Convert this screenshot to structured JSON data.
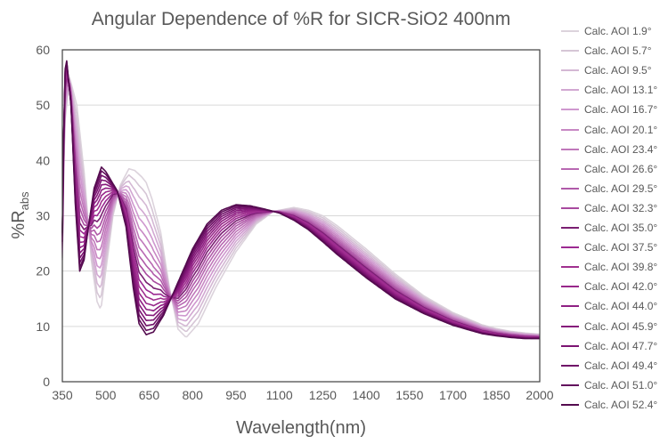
{
  "chart_data": {
    "type": "line",
    "title": "Angular Dependence of %R for SICR-SiO2 400nm",
    "xlabel": "Wavelength(nm)",
    "ylabel_main": "%R",
    "ylabel_sub": "abs",
    "xlim": [
      350,
      2000
    ],
    "ylim": [
      0,
      60
    ],
    "xticks": [
      "350",
      "500",
      "650",
      "800",
      "950",
      "1100",
      "1250",
      "1400",
      "1550",
      "1700",
      "1850",
      "2000"
    ],
    "yticks": [
      "0",
      "10",
      "20",
      "30",
      "40",
      "50",
      "60"
    ],
    "grid": "horizontal",
    "legend_position": "right",
    "series": [
      {
        "name": "Calc. AOI 1.9°",
        "aoi": 1.9,
        "color": "#dcd3dc"
      },
      {
        "name": "Calc. AOI 5.7°",
        "aoi": 5.7,
        "color": "#d6c6d6"
      },
      {
        "name": "Calc. AOI 9.5°",
        "aoi": 9.5,
        "color": "#d4b8d4"
      },
      {
        "name": "Calc. AOI 13.1°",
        "aoi": 13.1,
        "color": "#d2a8d2"
      },
      {
        "name": "Calc. AOI 16.7°",
        "aoi": 16.7,
        "color": "#cf98cf"
      },
      {
        "name": "Calc. AOI 20.1°",
        "aoi": 20.1,
        "color": "#c888c4"
      },
      {
        "name": "Calc. AOI 23.4°",
        "aoi": 23.4,
        "color": "#c078bb"
      },
      {
        "name": "Calc. AOI 26.6°",
        "aoi": 26.6,
        "color": "#b868b2"
      },
      {
        "name": "Calc. AOI 29.5°",
        "aoi": 29.5,
        "color": "#b05aa9"
      },
      {
        "name": "Calc. AOI 32.3°",
        "aoi": 32.3,
        "color": "#a84a9f"
      },
      {
        "name": "Calc. AOI 35.0°",
        "aoi": 35.0,
        "color": "#7a1f72"
      },
      {
        "name": "Calc. AOI 37.5°",
        "aoi": 37.5,
        "color": "#9c2a92"
      },
      {
        "name": "Calc. AOI 39.8°",
        "aoi": 39.8,
        "color": "#a0308f"
      },
      {
        "name": "Calc. AOI 42.0°",
        "aoi": 42.0,
        "color": "#98278a"
      },
      {
        "name": "Calc. AOI 44.0°",
        "aoi": 44.0,
        "color": "#8f2083"
      },
      {
        "name": "Calc. AOI 45.9°",
        "aoi": 45.9,
        "color": "#86197b"
      },
      {
        "name": "Calc. AOI 47.7°",
        "aoi": 47.7,
        "color": "#7c1472"
      },
      {
        "name": "Calc. AOI 49.4°",
        "aoi": 49.4,
        "color": "#701068"
      },
      {
        "name": "Calc. AOI 51.0°",
        "aoi": 51.0,
        "color": "#620d5c"
      },
      {
        "name": "Calc. AOI 52.4°",
        "aoi": 52.4,
        "color": "#540b4f"
      }
    ],
    "profile_normal_incidence": {
      "x": [
        350,
        357,
        375,
        400,
        425,
        450,
        470,
        483,
        500,
        525,
        550,
        580,
        600,
        625,
        640,
        660,
        690,
        720,
        750,
        778,
        820,
        880,
        950,
        1020,
        1080,
        1150,
        1200,
        1250,
        1300,
        1400,
        1500,
        1600,
        1700,
        1800,
        1850,
        1900,
        1950,
        2000
      ],
      "y": [
        22,
        46,
        55,
        50,
        38,
        22,
        14.5,
        13,
        20,
        30,
        35.5,
        38.5,
        38.2,
        37,
        36,
        33,
        27,
        17,
        9.5,
        8,
        10.5,
        17,
        23.5,
        28.5,
        30.8,
        31.5,
        31,
        30,
        28.2,
        24,
        19.5,
        15.5,
        12.5,
        10.3,
        9.6,
        9.1,
        8.8,
        8.6
      ]
    },
    "profile_high_aoi": {
      "x": [
        350,
        358,
        365,
        380,
        395,
        410,
        425,
        440,
        460,
        485,
        500,
        540,
        570,
        595,
        615,
        640,
        665,
        700,
        750,
        800,
        850,
        900,
        950,
        1000,
        1050,
        1100,
        1150,
        1200,
        1250,
        1300,
        1400,
        1500,
        1600,
        1700,
        1800,
        1850,
        1900,
        1950,
        2000
      ],
      "y": [
        27,
        56,
        58,
        50,
        32,
        20,
        22,
        28,
        35,
        38.8,
        38,
        34.5,
        28,
        17,
        10.5,
        8.5,
        9,
        12,
        18,
        24,
        28.5,
        31,
        32,
        31.8,
        31.2,
        30.5,
        29.2,
        27.5,
        25.3,
        23,
        18.8,
        15,
        12.3,
        10.2,
        8.7,
        8.3,
        8,
        7.8,
        7.8
      ]
    }
  }
}
